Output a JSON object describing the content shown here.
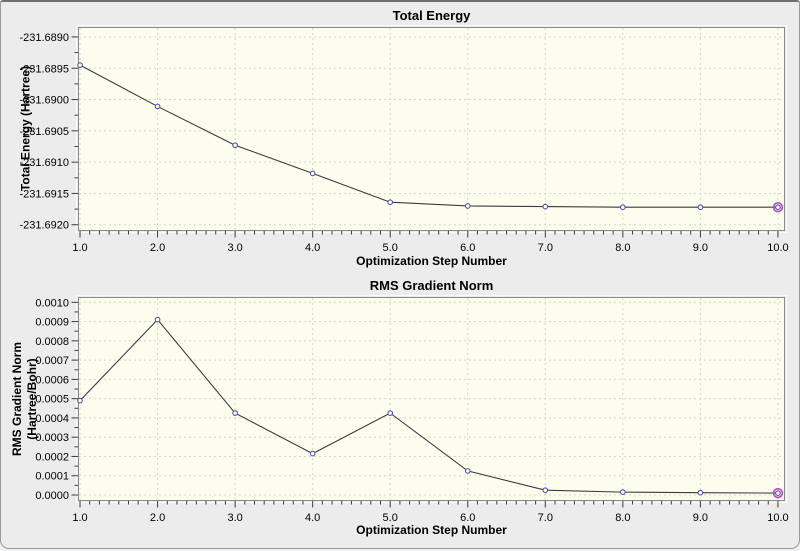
{
  "theme": {
    "window_bg": "#ececec",
    "plot_bg": "#fdfdee",
    "grid_color": "#d6d6c6",
    "frame_color": "#8a8a8a",
    "axis_color": "#3c3c3c",
    "text_color": "#000000"
  },
  "chart_data": [
    {
      "type": "line",
      "title": "Total Energy",
      "xlabel": "Optimization Step Number",
      "ylabel_lines": [
        "Total Energy (Hartree)"
      ],
      "x": [
        1,
        2,
        3,
        4,
        5,
        6,
        7,
        8,
        9,
        10
      ],
      "y": [
        -231.68945,
        -231.69011,
        -231.69073,
        -231.69118,
        -231.69164,
        -231.6917,
        -231.69171,
        -231.69172,
        -231.69172,
        -231.69172
      ],
      "xlim": [
        0.974,
        10.091
      ],
      "ylim": [
        -231.6921,
        -231.688841
      ],
      "xticks": {
        "values": [
          1,
          2,
          3,
          4,
          5,
          6,
          7,
          8,
          9,
          10
        ],
        "labels": [
          "1.0",
          "2.0",
          "3.0",
          "4.0",
          "5.0",
          "6.0",
          "7.0",
          "8.0",
          "9.0",
          "10.0"
        ]
      },
      "yticks": {
        "values": [
          -231.689,
          -231.6895,
          -231.69,
          -231.6905,
          -231.691,
          -231.6915,
          -231.692
        ],
        "labels": [
          "-231.6890",
          "-231.6895",
          "-231.6900",
          "-231.6905",
          "-231.6910",
          "-231.6915",
          "-231.6920"
        ]
      },
      "x_minor_step": 0.125,
      "grid": true,
      "line_color": "#3a3a46",
      "marker_color": "#5353a8",
      "marker_fill": "#fdfdee",
      "highlight_last": true,
      "highlight_color": "#bb4cbb"
    },
    {
      "type": "line",
      "title": "RMS Gradient Norm",
      "xlabel": "Optimization Step Number",
      "ylabel_lines": [
        "RMS Gradient Norm",
        "(Hartree/Bohr)"
      ],
      "x": [
        1,
        2,
        3,
        4,
        5,
        6,
        7,
        8,
        9,
        10
      ],
      "y": [
        0.00049,
        0.00091,
        0.000425,
        0.000215,
        0.000425,
        0.000125,
        2.5e-05,
        1.5e-05,
        1.2e-05,
        1e-05
      ],
      "xlim": [
        0.974,
        10.091
      ],
      "ylim": [
        -3.11e-05,
        0.0010275
      ],
      "xticks": {
        "values": [
          1,
          2,
          3,
          4,
          5,
          6,
          7,
          8,
          9,
          10
        ],
        "labels": [
          "1.0",
          "2.0",
          "3.0",
          "4.0",
          "5.0",
          "6.0",
          "7.0",
          "8.0",
          "9.0",
          "10.0"
        ]
      },
      "yticks": {
        "values": [
          0.001,
          0.0009,
          0.0008,
          0.0007,
          0.0006,
          0.0005,
          0.0004,
          0.0003,
          0.0002,
          0.0001,
          0.0
        ],
        "labels": [
          "0.0010",
          "0.0009",
          "0.0008",
          "0.0007",
          "0.0006",
          "0.0005",
          "0.0004",
          "0.0003",
          "0.0002",
          "0.0001",
          "0.0000"
        ]
      },
      "x_minor_step": 0.125,
      "grid": true,
      "line_color": "#3a3a46",
      "marker_color": "#5353a8",
      "marker_fill": "#fdfdee",
      "highlight_last": true,
      "highlight_color": "#bb4cbb"
    }
  ]
}
